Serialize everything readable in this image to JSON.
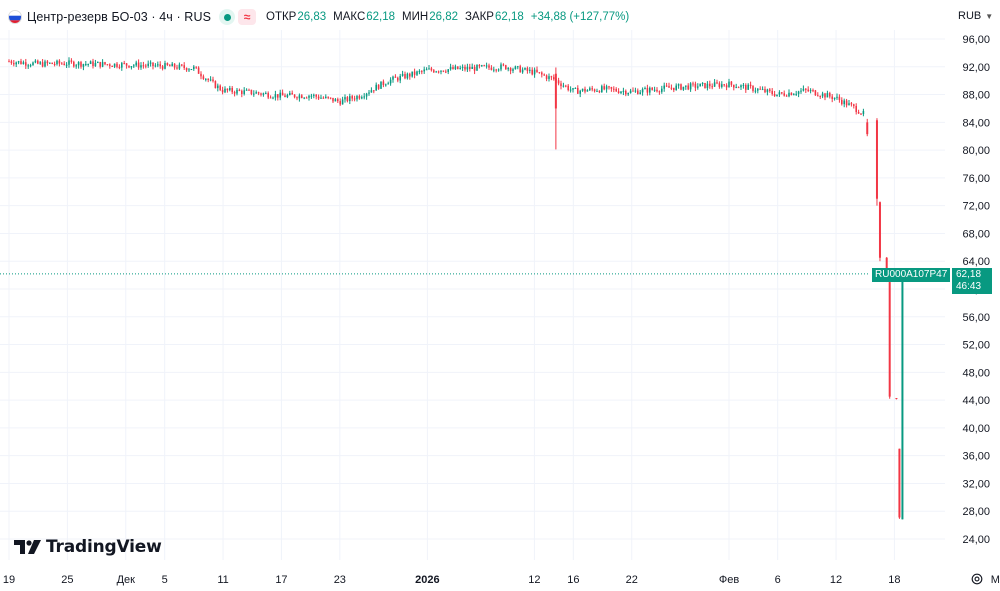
{
  "header": {
    "symbol": "Центр-резерв БО-03 · 4ч · RUS",
    "approx_label": "≈",
    "ohlc": [
      {
        "label": "ОТКР",
        "value": "26,83"
      },
      {
        "label": "МАКС",
        "value": "62,18"
      },
      {
        "label": "МИН",
        "value": "26,82"
      },
      {
        "label": "ЗАКР",
        "value": "62,18"
      },
      {
        "label": "",
        "value": "+34,88 (+127,77%)"
      }
    ]
  },
  "currency": "RUB",
  "price_tag": {
    "isin": "RU000A107P47",
    "price": "62,18",
    "countdown": "46:43"
  },
  "logo_text": "TradingView",
  "colors": {
    "up": "#089981",
    "down": "#f23645",
    "grid": "#f0f3fa",
    "text": "#131722"
  },
  "chart_data": {
    "type": "candlestick",
    "ylim": [
      22,
      97
    ],
    "y_ticks": [
      "96,00",
      "92,00",
      "88,00",
      "84,00",
      "80,00",
      "76,00",
      "72,00",
      "68,00",
      "64,00",
      "60,00",
      "56,00",
      "52,00",
      "48,00",
      "44,00",
      "40,00",
      "36,00",
      "32,00",
      "28,00",
      "24,00"
    ],
    "y_tick_values": [
      96,
      92,
      88,
      84,
      80,
      76,
      72,
      68,
      64,
      60,
      56,
      52,
      48,
      44,
      40,
      36,
      32,
      28,
      24
    ],
    "x_ticks": [
      "19",
      "25",
      "Дек",
      "5",
      "11",
      "17",
      "23",
      "2026",
      "12",
      "16",
      "22",
      "Фев",
      "6",
      "12",
      "18",
      "Мар"
    ],
    "x_tick_dates": [
      "2025-11-19",
      "2025-11-25",
      "2025-12-01",
      "2025-12-05",
      "2025-12-11",
      "2025-12-17",
      "2025-12-23",
      "2026-01-01",
      "2026-01-12",
      "2026-01-16",
      "2026-01-22",
      "2026-02-01",
      "2026-02-06",
      "2026-02-12",
      "2026-02-18",
      "2026-03-01"
    ],
    "last_price": 62.18,
    "trend": [
      [
        "2025-11-19",
        92.8
      ],
      [
        "2025-11-22",
        92.4
      ],
      [
        "2025-11-25",
        92.5
      ],
      [
        "2025-12-01",
        92.3
      ],
      [
        "2025-12-05",
        92.1
      ],
      [
        "2025-12-08",
        91.8
      ],
      [
        "2025-12-10",
        89.5
      ],
      [
        "2025-12-11",
        88.6
      ],
      [
        "2025-12-14",
        88.3
      ],
      [
        "2025-12-17",
        87.8
      ],
      [
        "2025-12-20",
        87.9
      ],
      [
        "2025-12-23",
        87.0
      ],
      [
        "2025-12-25",
        87.8
      ],
      [
        "2025-12-28",
        90.0
      ],
      [
        "2026-01-01",
        91.5
      ],
      [
        "2026-01-09",
        92.0
      ],
      [
        "2026-01-12",
        91.2
      ],
      [
        "2026-01-14",
        90.2
      ],
      [
        "2026-01-16",
        88.5
      ],
      [
        "2026-01-19",
        88.8
      ],
      [
        "2026-01-22",
        88.4
      ],
      [
        "2026-01-26",
        89.0
      ],
      [
        "2026-02-01",
        89.5
      ],
      [
        "2026-02-04",
        88.7
      ],
      [
        "2026-02-06",
        88.0
      ],
      [
        "2026-02-09",
        88.6
      ],
      [
        "2026-02-12",
        87.5
      ],
      [
        "2026-02-14",
        86.0
      ],
      [
        "2026-02-15",
        85.0
      ]
    ],
    "events": [
      {
        "date": "2026-01-14",
        "open": 91.0,
        "high": 91.9,
        "low": 80.1,
        "close": 86.0
      },
      {
        "date": "2026-02-15",
        "open": 84.0,
        "high": 84.5,
        "low": 82.0,
        "close": 82.3
      },
      {
        "date": "2026-02-16",
        "open": 84.3,
        "high": 84.6,
        "low": 72.0,
        "close": 73.0
      },
      {
        "date": "2026-02-16",
        "open": 72.5,
        "high": 72.6,
        "low": 64.0,
        "close": 64.5
      },
      {
        "date": "2026-02-17",
        "open": 64.5,
        "high": 64.6,
        "low": 61.0,
        "close": 61.2
      },
      {
        "date": "2026-02-17",
        "open": 61.0,
        "high": 61.0,
        "low": 44.2,
        "close": 44.5
      },
      {
        "date": "2026-02-18",
        "open": 44.3,
        "high": 44.3,
        "low": 44.1,
        "close": 44.2
      },
      {
        "date": "2026-02-18",
        "open": 37.0,
        "high": 37.0,
        "low": 26.9,
        "close": 27.1
      },
      {
        "date": "2026-02-18",
        "open": 26.83,
        "high": 62.18,
        "low": 26.82,
        "close": 62.18
      }
    ]
  }
}
